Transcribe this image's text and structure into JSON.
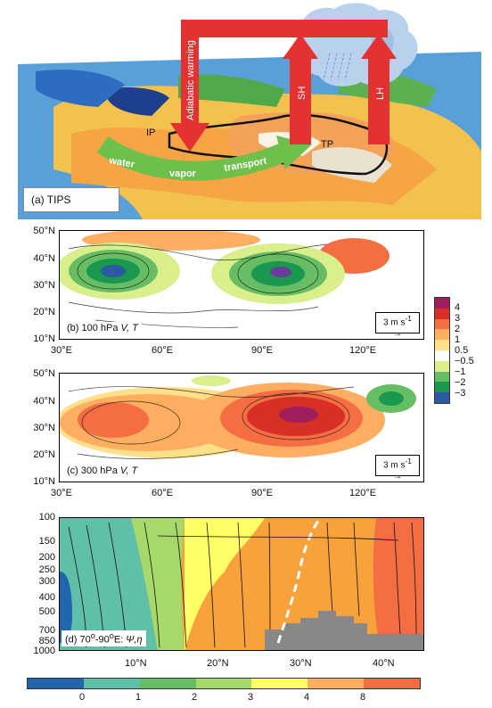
{
  "panel_a": {
    "label": "(a) TIPS",
    "arrow_down": "Adiabatic warming",
    "arrow_sh": "SH",
    "arrow_lh": "LH",
    "ip": "IP",
    "tp": "TP",
    "transport_words": [
      "water",
      "vapor",
      "transport"
    ]
  },
  "panel_b": {
    "tag": "(b)  100 hPa ",
    "vars": "V, T",
    "ref": "3 m s",
    "ref_sup": "-1"
  },
  "panel_c": {
    "tag": "(c)  300 hPa ",
    "vars": "V, T",
    "ref": "3 m s",
    "ref_sup": "-1"
  },
  "panel_d": {
    "tag": "(d)  70",
    "tag_mid": "o",
    "tag_mid2": "-90",
    "tag_end": "E: ",
    "vars": "Ψ,η"
  },
  "map_axes": {
    "lat_ticks": [
      "50°N",
      "40°N",
      "30°N",
      "20°N",
      "10°N"
    ],
    "lon_ticks": [
      "30°E",
      "60°E",
      "90°E",
      "120°E"
    ]
  },
  "section_axes": {
    "pressure_ticks": [
      "100",
      "150",
      "200",
      "250",
      "300",
      "400",
      "500",
      "700",
      "850",
      "1000"
    ],
    "lat_ticks": [
      "10°N",
      "20°N",
      "30°N",
      "40°N"
    ]
  },
  "side_colorbar": {
    "labels": [
      "4",
      "3",
      "2",
      "1",
      "0.5",
      "−0.5",
      "−1",
      "−2",
      "−3"
    ],
    "colors": [
      "#9e1f5c",
      "#d73027",
      "#f46d43",
      "#fdae61",
      "#fee08b",
      "#ffffff",
      "#d9ef8b",
      "#66bd63",
      "#1a9850",
      "#2c5aa0"
    ]
  },
  "bottom_colorbar": {
    "labels": [
      "0",
      "1",
      "2",
      "3",
      "4",
      "8"
    ],
    "colors": [
      "#2166ac",
      "#5fbfa8",
      "#66bd63",
      "#a6d96a",
      "#ffff66",
      "#fdae61",
      "#f46d43"
    ]
  }
}
